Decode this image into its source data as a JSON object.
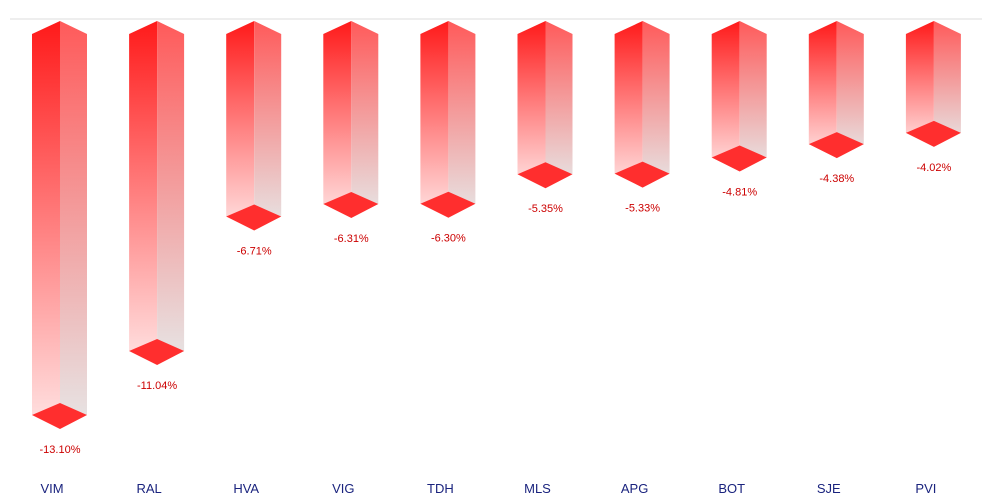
{
  "chart_data": {
    "type": "bar",
    "title": "",
    "xlabel": "",
    "ylabel": "",
    "categories": [
      "VIM",
      "RAL",
      "HVA",
      "VIG",
      "TDH",
      "MLS",
      "APG",
      "BOT",
      "SJE",
      "PVI"
    ],
    "values": [
      -13.1,
      -11.04,
      -6.71,
      -6.31,
      -6.3,
      -5.35,
      -5.33,
      -4.81,
      -4.38,
      -4.02
    ],
    "value_labels": [
      "-13.10%",
      "-11.04%",
      "-6.71%",
      "-6.31%",
      "-6.30%",
      "-5.35%",
      "-5.33%",
      "-4.81%",
      "-4.38%",
      "-4.02%"
    ],
    "ylim": [
      -13.1,
      0
    ],
    "grid": false,
    "legend": "none"
  },
  "colors": {
    "bar_top": "#ff1a1a",
    "bar_bottom": "#ffe3e3",
    "side_top": "#ff5a5a",
    "side_bottom": "#e6e6e6",
    "cap": "#ff2e2e",
    "value_label": "#cc0000",
    "category_label": "#1a237e",
    "baseline": "#dddddd"
  }
}
